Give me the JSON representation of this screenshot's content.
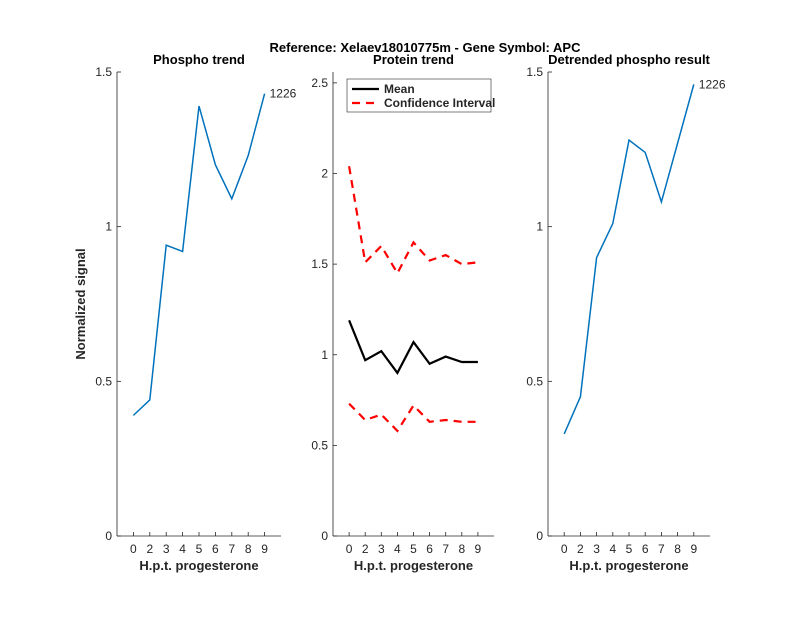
{
  "chart_data": {
    "title": "Reference:  Xelaev18010775m - Gene Symbol:  APC",
    "charts": [
      {
        "type": "line",
        "title": "Phospho trend",
        "xlabel": "H.p.t. progesterone",
        "ylabel": "Normalized signal",
        "categories": [
          "0",
          "2",
          "3",
          "4",
          "5",
          "6",
          "7",
          "8",
          "9"
        ],
        "ylim": [
          0,
          1.5
        ],
        "yticks": [
          0,
          0.5,
          1,
          1.5
        ],
        "ytick_labels": [
          "0",
          "0.5",
          "1",
          "1.5"
        ],
        "series": [
          {
            "name": "1226",
            "color": "#0072BD",
            "values": [
              0.39,
              0.44,
              0.94,
              0.92,
              1.39,
              1.2,
              1.09,
              1.23,
              1.43
            ]
          }
        ],
        "end_label": "1226"
      },
      {
        "type": "line",
        "title": "Protein trend",
        "xlabel": "H.p.t. progesterone",
        "ylabel": "",
        "categories": [
          "0",
          "2",
          "3",
          "4",
          "5",
          "6",
          "7",
          "8",
          "9"
        ],
        "ylim": [
          0,
          2.56
        ],
        "yticks": [
          0,
          0.5,
          1,
          1.5,
          2,
          2.5
        ],
        "ytick_labels": [
          "0",
          "0.5",
          "1",
          "1.5",
          "2",
          "2.5"
        ],
        "legend": {
          "position": "top-left",
          "entries": [
            "Mean",
            "Confidence Interval"
          ]
        },
        "series": [
          {
            "name": "Mean",
            "color": "#000000",
            "dash": false,
            "values": [
              1.19,
              0.97,
              1.02,
              0.9,
              1.07,
              0.95,
              0.99,
              0.96,
              0.96
            ]
          },
          {
            "name": "Confidence Interval",
            "color": "#FF0000",
            "dash": true,
            "values": [
              2.04,
              1.51,
              1.6,
              1.45,
              1.62,
              1.52,
              1.55,
              1.5,
              1.51
            ]
          },
          {
            "name": "Confidence Interval lower",
            "color": "#FF0000",
            "dash": true,
            "values": [
              0.73,
              0.64,
              0.67,
              0.58,
              0.72,
              0.63,
              0.64,
              0.63,
              0.63
            ]
          }
        ]
      },
      {
        "type": "line",
        "title": "Detrended phospho result",
        "xlabel": "H.p.t. progesterone",
        "ylabel": "",
        "categories": [
          "0",
          "2",
          "3",
          "4",
          "5",
          "6",
          "7",
          "8",
          "9"
        ],
        "ylim": [
          0,
          1.5
        ],
        "yticks": [
          0,
          0.5,
          1,
          1.5
        ],
        "ytick_labels": [
          "0",
          "0.5",
          "1",
          "1.5"
        ],
        "series": [
          {
            "name": "1226",
            "color": "#0072BD",
            "values": [
              0.33,
              0.45,
              0.9,
              1.01,
              1.28,
              1.24,
              1.08,
              1.27,
              1.46
            ]
          }
        ],
        "end_label": "1226"
      }
    ]
  }
}
